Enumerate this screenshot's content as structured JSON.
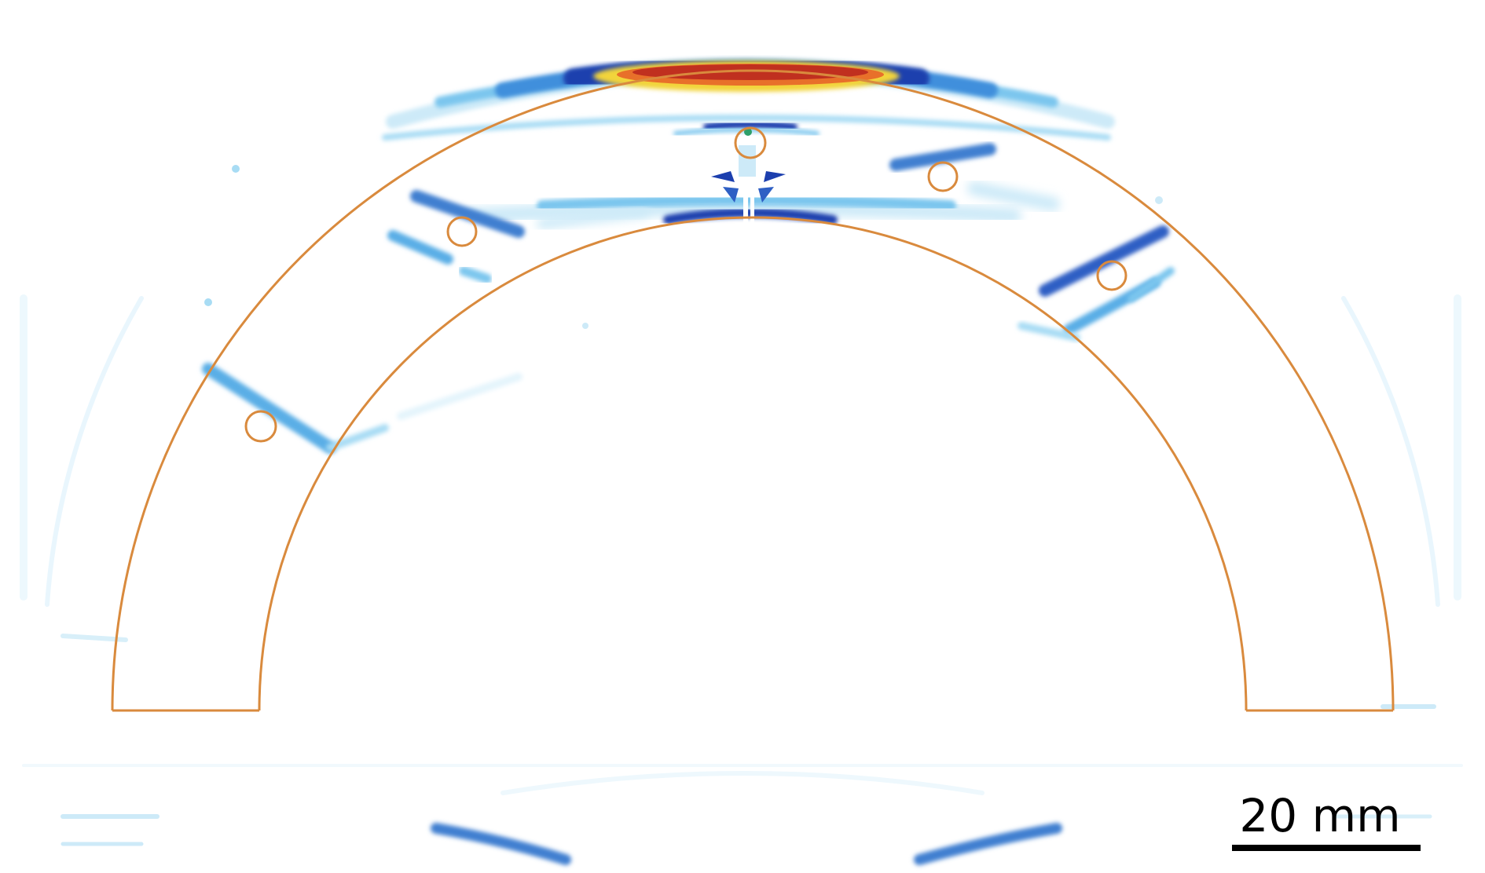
{
  "scale_bar": {
    "label": "20 mm"
  },
  "colors": {
    "outline": "#d98a3d",
    "faint_blue": "#cdeaf8",
    "light_blue": "#7cc6ee",
    "mid_blue": "#3f8fdc",
    "dark_blue": "#1c3fae",
    "yellow": "#f2d43a",
    "orange": "#e8702a",
    "red": "#c0301f"
  }
}
